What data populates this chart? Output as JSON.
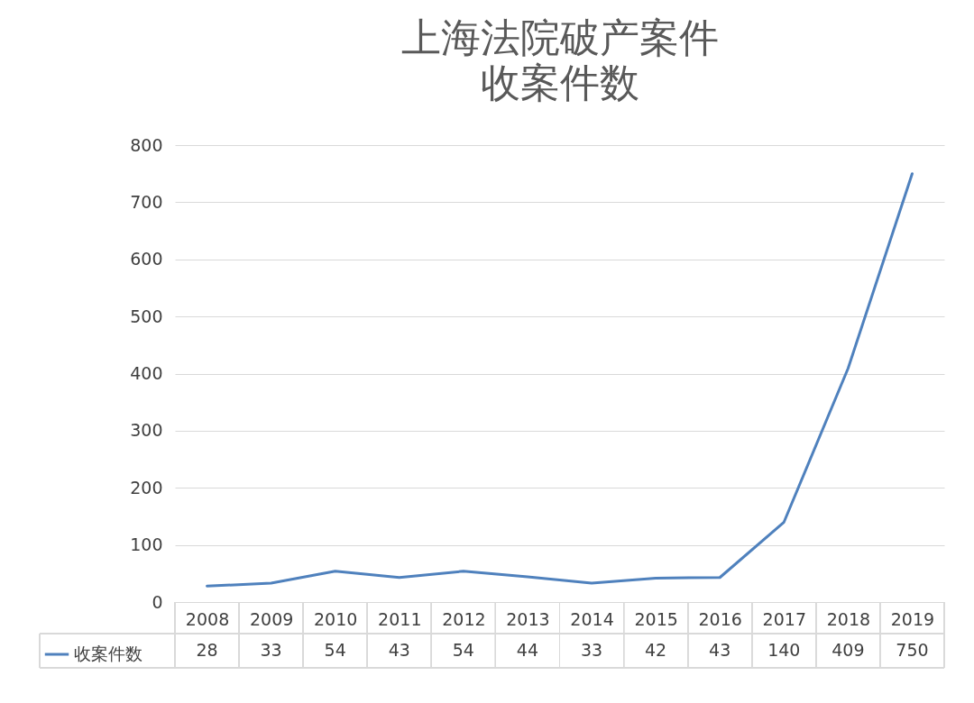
{
  "chart_data": {
    "type": "line",
    "title": "上海法院破产案件",
    "subtitle": "收案件数",
    "categories": [
      "2008",
      "2009",
      "2010",
      "2011",
      "2012",
      "2013",
      "2014",
      "2015",
      "2016",
      "2017",
      "2018",
      "2019"
    ],
    "series": [
      {
        "name": "收案件数",
        "color": "#4f81bd",
        "values": [
          28,
          33,
          54,
          43,
          54,
          44,
          33,
          42,
          43,
          140,
          409,
          750
        ]
      }
    ],
    "ylim": [
      0,
      800
    ],
    "yticks": [
      0,
      100,
      200,
      300,
      400,
      500,
      600,
      700,
      800
    ],
    "grid": "y",
    "legend": "bottom",
    "data_labels": true
  }
}
